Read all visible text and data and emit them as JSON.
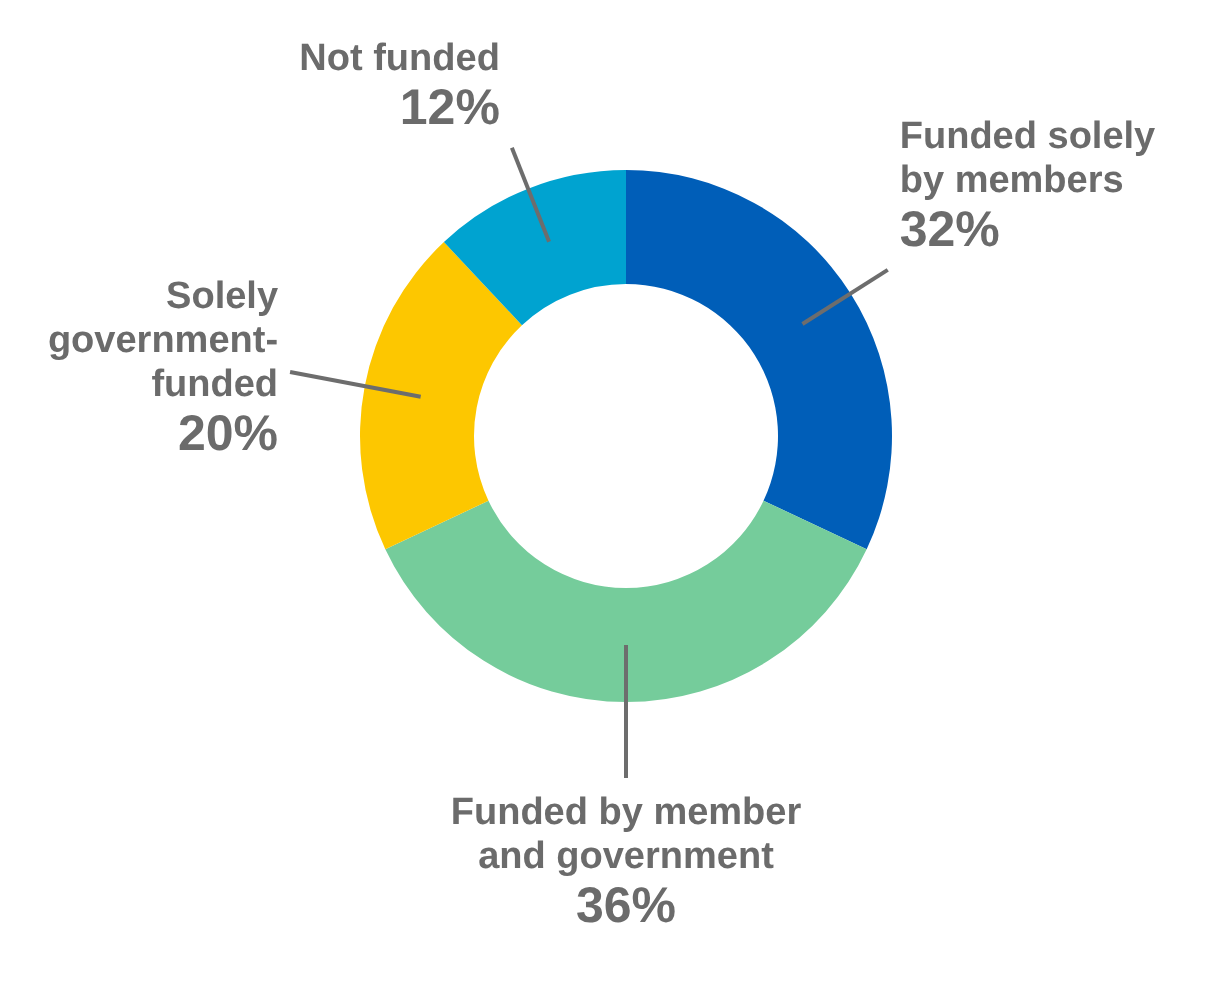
{
  "chart_data": {
    "type": "donut",
    "categories": [
      "Funded solely by members",
      "Funded by member and government",
      "Solely government-funded",
      "Not funded"
    ],
    "values": [
      32,
      36,
      20,
      12
    ],
    "colors": [
      "#005eb8",
      "#75cc9b",
      "#fdc700",
      "#00a3d0"
    ],
    "value_labels": [
      "32%",
      "36%",
      "20%",
      "12%"
    ]
  }
}
